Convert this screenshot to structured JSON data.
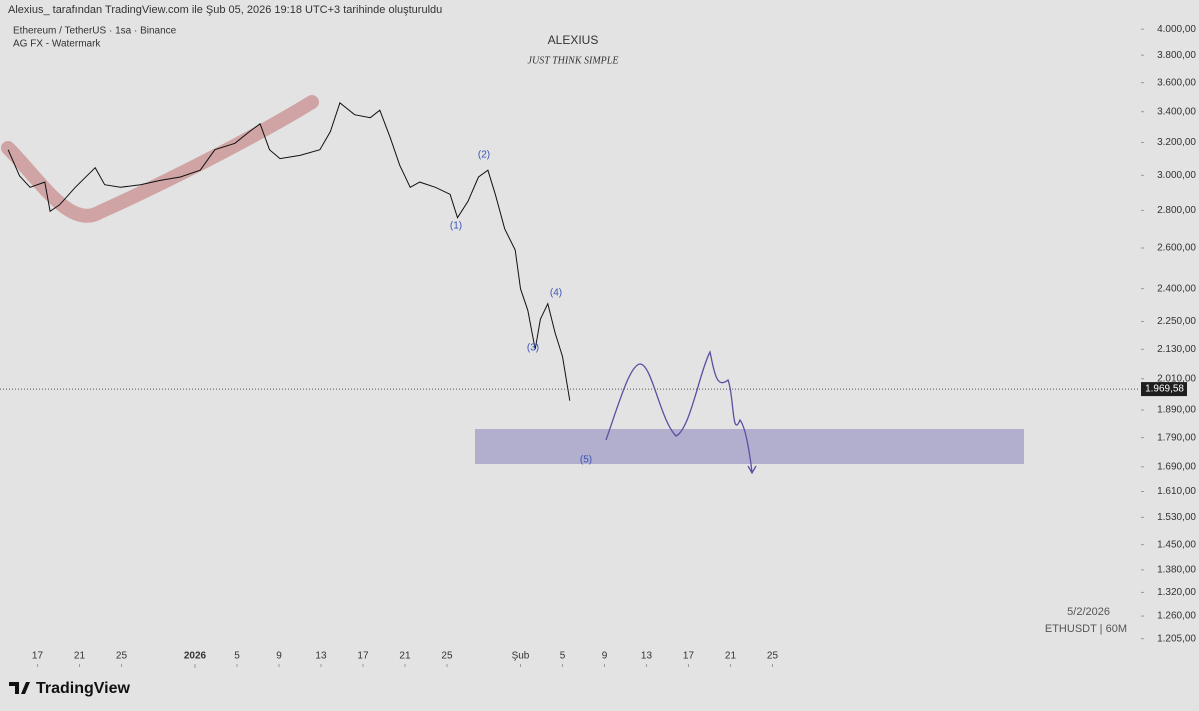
{
  "header": {
    "attribution": "Alexius_ tarafından TradingView.com ile Şub 05, 2026 19:18 UTC+3 tarihinde oluşturuldu",
    "symbol": "Ethereum / TetherUS · 1sa · Binance",
    "indicator": "AG FX - Watermark",
    "logo": "TradingView"
  },
  "watermark": {
    "title": "ALEXIUS",
    "subtitle": "JUST THINK SIMPLE",
    "date": "5/2/2026",
    "ticker": "ETHUSDT | 60M"
  },
  "chart_data": {
    "type": "line",
    "log_scale": true,
    "x": [
      -17.8,
      -16.7,
      -15.7,
      -14.3,
      -13.8,
      -12.9,
      -11.4,
      -9.5,
      -8.6,
      -7.1,
      -5.2,
      -3.3,
      -1.4,
      0.5,
      1.9,
      3.8,
      5.2,
      6.2,
      7.1,
      8.1,
      10,
      11.9,
      12.9,
      13.8,
      15.2,
      16.7,
      17.6,
      18.6,
      19.5,
      20.5,
      21.4,
      22.9,
      24.3,
      25,
      26,
      27,
      27.9,
      28.6,
      29.5,
      30.5,
      31,
      31.7,
      32.4,
      32.9,
      33.6,
      34.3,
      35,
      35.7
    ],
    "series": [
      {
        "name": "ETHUSDT",
        "color": "#111111",
        "values": [
          3155,
          2996,
          2930,
          2960,
          2795,
          2830,
          2930,
          3045,
          2945,
          2930,
          2945,
          2970,
          2990,
          3030,
          3155,
          3195,
          3270,
          3320,
          3155,
          3100,
          3120,
          3155,
          3270,
          3460,
          3380,
          3360,
          3410,
          3230,
          3060,
          2930,
          2960,
          2930,
          2890,
          2760,
          2850,
          2990,
          3030,
          2890,
          2700,
          2590,
          2400,
          2300,
          2130,
          2260,
          2330,
          2200,
          2100,
          1925
        ]
      }
    ],
    "xlim": [
      -18.57,
      90
    ],
    "xticks": [
      {
        "value": -15,
        "label": "17"
      },
      {
        "value": -11,
        "label": "21"
      },
      {
        "value": -7,
        "label": "25"
      },
      0,
      {
        "value": 4,
        "label": "5"
      },
      {
        "value": 8,
        "label": "9"
      },
      {
        "value": 12,
        "label": "13"
      },
      {
        "value": 16,
        "label": "17"
      },
      {
        "value": 20,
        "label": "21"
      },
      {
        "value": 24,
        "label": "25"
      },
      {
        "value": 31,
        "label": "Şub"
      },
      {
        "value": 35,
        "label": "5"
      },
      {
        "value": 39,
        "label": "9"
      },
      {
        "value": 43,
        "label": "13"
      },
      {
        "value": 47,
        "label": "17"
      },
      {
        "value": 51,
        "label": "21"
      },
      {
        "value": 55,
        "label": "25"
      }
    ],
    "year_tick": {
      "value": 0,
      "label": "2026"
    },
    "ylim": [
      1167,
      4236
    ],
    "yticks": [
      {
        "value": 4000,
        "label": "4.000,00"
      },
      {
        "value": 3800,
        "label": "3.800,00"
      },
      {
        "value": 3600,
        "label": "3.600,00"
      },
      {
        "value": 3400,
        "label": "3.400,00"
      },
      {
        "value": 3200,
        "label": "3.200,00"
      },
      {
        "value": 3000,
        "label": "3.000,00"
      },
      {
        "value": 2800,
        "label": "2.800,00"
      },
      {
        "value": 2600,
        "label": "2.600,00"
      },
      {
        "value": 2400,
        "label": "2.400,00"
      },
      {
        "value": 2250,
        "label": "2.250,00"
      },
      {
        "value": 2130,
        "label": "2.130,00"
      },
      {
        "value": 2010,
        "label": "2.010,00"
      },
      {
        "value": 1890,
        "label": "1.890,00"
      },
      {
        "value": 1790,
        "label": "1.790,00"
      },
      {
        "value": 1690,
        "label": "1.690,00"
      },
      {
        "value": 1610,
        "label": "1.610,00"
      },
      {
        "value": 1530,
        "label": "1.530,00"
      },
      {
        "value": 1450,
        "label": "1.450,00"
      },
      {
        "value": 1380,
        "label": "1.380,00"
      },
      {
        "value": 1320,
        "label": "1.320,00"
      },
      {
        "value": 1260,
        "label": "1.260,00"
      },
      {
        "value": 1205,
        "label": "1.205,00"
      }
    ],
    "last_price": {
      "value": 1969.58,
      "label": "1.969,58"
    },
    "annotations": [
      "(1)",
      "(2)",
      "(3)",
      "(4)",
      "(5)"
    ]
  }
}
